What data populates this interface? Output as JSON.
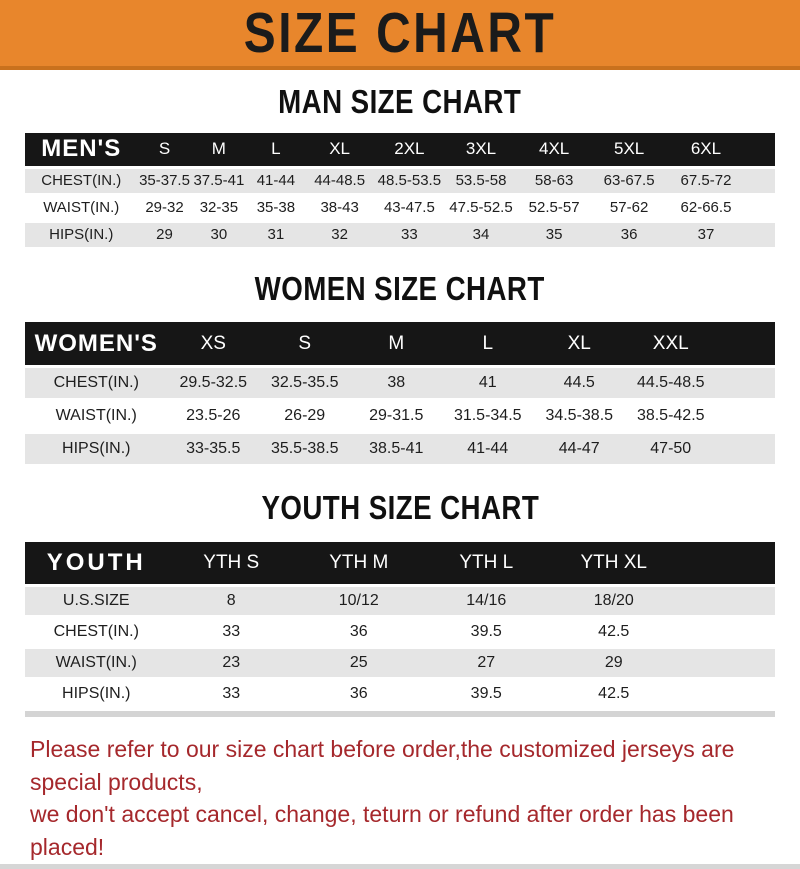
{
  "banner": {
    "title": "SIZE CHART"
  },
  "chart_data": [
    {
      "type": "table",
      "title": "MAN SIZE CHART",
      "label": "MEN'S",
      "columns": [
        "S",
        "M",
        "L",
        "XL",
        "2XL",
        "3XL",
        "4XL",
        "5XL",
        "6XL"
      ],
      "rows": [
        {
          "label": "CHEST(IN.)",
          "values": [
            "35-37.5",
            "37.5-41",
            "41-44",
            "44-48.5",
            "48.5-53.5",
            "53.5-58",
            "58-63",
            "63-67.5",
            "67.5-72"
          ]
        },
        {
          "label": "WAIST(IN.)",
          "values": [
            "29-32",
            "32-35",
            "35-38",
            "38-43",
            "43-47.5",
            "47.5-52.5",
            "52.5-57",
            "57-62",
            "62-66.5"
          ]
        },
        {
          "label": "HIPS(IN.)",
          "values": [
            "29",
            "30",
            "31",
            "32",
            "33",
            "34",
            "35",
            "36",
            "37"
          ]
        }
      ]
    },
    {
      "type": "table",
      "title": "WOMEN SIZE CHART",
      "label": "WOMEN'S",
      "columns": [
        "XS",
        "S",
        "M",
        "L",
        "XL",
        "XXL"
      ],
      "rows": [
        {
          "label": "CHEST(IN.)",
          "values": [
            "29.5-32.5",
            "32.5-35.5",
            "38",
            "41",
            "44.5",
            "44.5-48.5"
          ]
        },
        {
          "label": "WAIST(IN.)",
          "values": [
            "23.5-26",
            "26-29",
            "29-31.5",
            "31.5-34.5",
            "34.5-38.5",
            "38.5-42.5"
          ]
        },
        {
          "label": "HIPS(IN.)",
          "values": [
            "33-35.5",
            "35.5-38.5",
            "38.5-41",
            "41-44",
            "44-47",
            "47-50"
          ]
        }
      ]
    },
    {
      "type": "table",
      "title": "YOUTH SIZE CHART",
      "label": "YOUTH",
      "columns": [
        "YTH S",
        "YTH M",
        "YTH L",
        "YTH XL"
      ],
      "rows": [
        {
          "label": "U.S.SIZE",
          "values": [
            "8",
            "10/12",
            "14/16",
            "18/20"
          ]
        },
        {
          "label": "CHEST(IN.)",
          "values": [
            "33",
            "36",
            "39.5",
            "42.5"
          ]
        },
        {
          "label": "WAIST(IN.)",
          "values": [
            "23",
            "25",
            "27",
            "29"
          ]
        },
        {
          "label": "HIPS(IN.)",
          "values": [
            "33",
            "36",
            "39.5",
            "42.5"
          ]
        }
      ]
    }
  ],
  "footer": {
    "line1": "Please refer to our size chart before order,the customized jerseys are special products,",
    "line2": "we don't accept cancel, change, teturn or refund after order has been placed!"
  },
  "colors": {
    "banner_orange": "#E8862C",
    "banner_border": "#C9711D",
    "header_black": "#161616",
    "row_gray": "#E5E5E5",
    "footer_red": "#A5282C"
  }
}
